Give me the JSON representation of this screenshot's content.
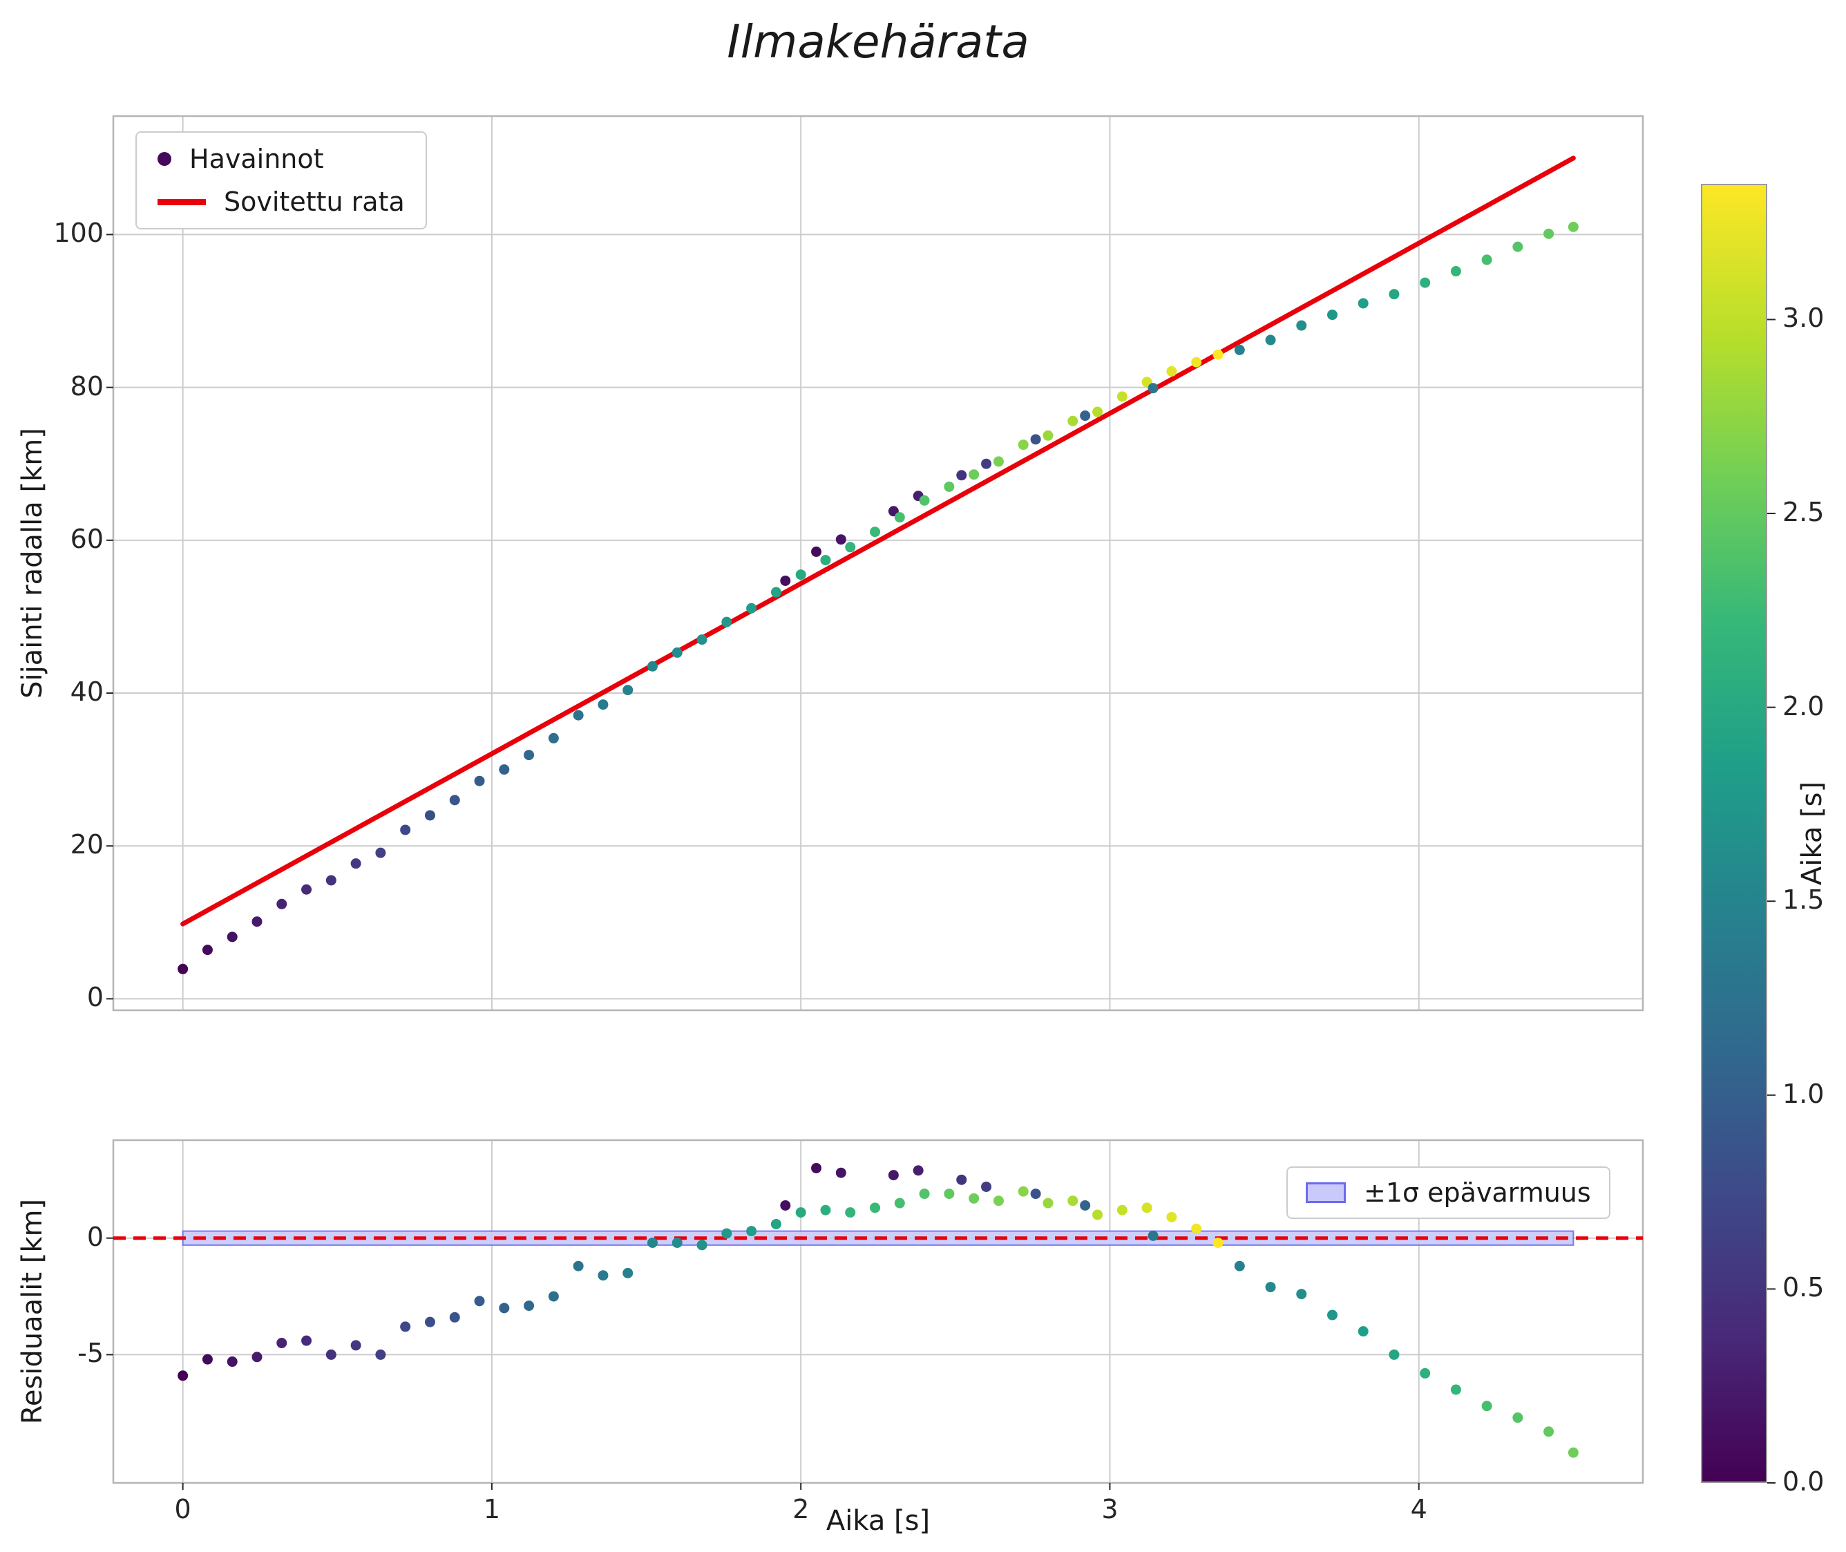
{
  "figure": {
    "title": "Ilmakehärata"
  },
  "colors": {
    "fit_line": "#e8000b",
    "band_fill": "#c9c9fa",
    "band_edge": "#6b6bf0",
    "grid": "#cccccc",
    "spine": "#b5b5b5",
    "tick_text": "#262626",
    "viridis": [
      [
        0.0,
        "#440154"
      ],
      [
        0.11,
        "#482878"
      ],
      [
        0.22,
        "#3e4989"
      ],
      [
        0.33,
        "#31688e"
      ],
      [
        0.44,
        "#26828e"
      ],
      [
        0.55,
        "#1f9e89"
      ],
      [
        0.66,
        "#35b779"
      ],
      [
        0.77,
        "#6ece58"
      ],
      [
        0.88,
        "#b5de2b"
      ],
      [
        1.0,
        "#fde725"
      ]
    ]
  },
  "chart_data": [
    {
      "type": "scatter",
      "title": "Ilmakehärata",
      "xlabel": "",
      "ylabel": "Sijainti radalla [km]",
      "xlim": [
        -0.225,
        4.725
      ],
      "ylim": [
        -1.5,
        115.5
      ],
      "xticks": [
        0,
        1,
        2,
        3,
        4
      ],
      "yticks": [
        0,
        20,
        40,
        60,
        80,
        100
      ],
      "grid": true,
      "legend": [
        "Havainnot",
        "Sovitettu rata"
      ],
      "legend_position": "upper left",
      "fit_line": {
        "x0": 0.0,
        "y0": 9.8,
        "x1": 4.5,
        "y1": 110.0
      },
      "colorbar": {
        "label": "Aika [s]",
        "ticks": [
          "0.0",
          "0.5",
          "1.0",
          "1.5",
          "2.0",
          "2.5",
          "3.0"
        ],
        "tick_values": [
          0.0,
          0.5,
          1.0,
          1.5,
          2.0,
          2.5,
          3.0
        ],
        "vmin": 0.0,
        "vmax": 3.35
      },
      "points": [
        {
          "x": 0.0,
          "y": 3.9,
          "r": -5.9,
          "c": 0.0
        },
        {
          "x": 0.08,
          "y": 6.4,
          "r": -5.2,
          "c": 0.08
        },
        {
          "x": 0.16,
          "y": 8.1,
          "r": -5.3,
          "c": 0.16
        },
        {
          "x": 0.24,
          "y": 10.1,
          "r": -5.1,
          "c": 0.24
        },
        {
          "x": 0.32,
          "y": 12.4,
          "r": -4.5,
          "c": 0.32
        },
        {
          "x": 0.4,
          "y": 14.3,
          "r": -4.4,
          "c": 0.4
        },
        {
          "x": 0.48,
          "y": 15.5,
          "r": -5.0,
          "c": 0.48
        },
        {
          "x": 0.56,
          "y": 17.7,
          "r": -4.6,
          "c": 0.56
        },
        {
          "x": 0.64,
          "y": 19.1,
          "r": -5.0,
          "c": 0.64
        },
        {
          "x": 0.72,
          "y": 22.1,
          "r": -3.8,
          "c": 0.72
        },
        {
          "x": 0.8,
          "y": 24.0,
          "r": -3.6,
          "c": 0.8
        },
        {
          "x": 0.88,
          "y": 26.0,
          "r": -3.4,
          "c": 0.88
        },
        {
          "x": 0.96,
          "y": 28.5,
          "r": -2.7,
          "c": 0.96
        },
        {
          "x": 1.04,
          "y": 30.0,
          "r": -3.0,
          "c": 1.04
        },
        {
          "x": 1.12,
          "y": 31.9,
          "r": -2.9,
          "c": 1.12
        },
        {
          "x": 1.2,
          "y": 34.1,
          "r": -2.5,
          "c": 1.2
        },
        {
          "x": 1.28,
          "y": 37.1,
          "r": -1.2,
          "c": 1.28
        },
        {
          "x": 1.36,
          "y": 38.5,
          "r": -1.6,
          "c": 1.36
        },
        {
          "x": 1.44,
          "y": 40.4,
          "r": -1.5,
          "c": 1.44
        },
        {
          "x": 1.52,
          "y": 43.5,
          "r": -0.2,
          "c": 1.52
        },
        {
          "x": 1.6,
          "y": 45.3,
          "r": -0.2,
          "c": 1.6
        },
        {
          "x": 1.68,
          "y": 47.0,
          "r": -0.3,
          "c": 1.68
        },
        {
          "x": 1.76,
          "y": 49.3,
          "r": 0.2,
          "c": 1.76
        },
        {
          "x": 1.84,
          "y": 51.1,
          "r": 0.3,
          "c": 1.84
        },
        {
          "x": 1.92,
          "y": 53.2,
          "r": 0.6,
          "c": 1.92
        },
        {
          "x": 1.95,
          "y": 54.7,
          "r": 1.4,
          "c": 0.12
        },
        {
          "x": 2.0,
          "y": 55.5,
          "r": 1.1,
          "c": 2.0
        },
        {
          "x": 2.05,
          "y": 58.5,
          "r": 3.0,
          "c": 0.1
        },
        {
          "x": 2.08,
          "y": 57.4,
          "r": 1.2,
          "c": 2.08
        },
        {
          "x": 2.13,
          "y": 60.1,
          "r": 2.8,
          "c": 0.18
        },
        {
          "x": 2.16,
          "y": 59.1,
          "r": 1.1,
          "c": 2.16
        },
        {
          "x": 2.24,
          "y": 61.1,
          "r": 1.3,
          "c": 2.24
        },
        {
          "x": 2.3,
          "y": 63.8,
          "r": 2.7,
          "c": 0.22
        },
        {
          "x": 2.32,
          "y": 63.0,
          "r": 1.5,
          "c": 2.32
        },
        {
          "x": 2.38,
          "y": 65.8,
          "r": 2.9,
          "c": 0.28
        },
        {
          "x": 2.4,
          "y": 65.2,
          "r": 1.9,
          "c": 2.4
        },
        {
          "x": 2.48,
          "y": 67.0,
          "r": 1.9,
          "c": 2.48
        },
        {
          "x": 2.52,
          "y": 68.5,
          "r": 2.5,
          "c": 0.5
        },
        {
          "x": 2.56,
          "y": 68.6,
          "r": 1.7,
          "c": 2.56
        },
        {
          "x": 2.6,
          "y": 70.0,
          "r": 2.2,
          "c": 0.6
        },
        {
          "x": 2.64,
          "y": 70.3,
          "r": 1.6,
          "c": 2.64
        },
        {
          "x": 2.72,
          "y": 72.5,
          "r": 2.0,
          "c": 2.72
        },
        {
          "x": 2.76,
          "y": 73.2,
          "r": 1.9,
          "c": 0.85
        },
        {
          "x": 2.8,
          "y": 73.7,
          "r": 1.5,
          "c": 2.8
        },
        {
          "x": 2.88,
          "y": 75.6,
          "r": 1.6,
          "c": 2.88
        },
        {
          "x": 2.92,
          "y": 76.3,
          "r": 1.4,
          "c": 1.05
        },
        {
          "x": 2.96,
          "y": 76.8,
          "r": 1.0,
          "c": 2.96
        },
        {
          "x": 3.04,
          "y": 78.8,
          "r": 1.2,
          "c": 3.04
        },
        {
          "x": 3.12,
          "y": 80.7,
          "r": 1.3,
          "c": 3.12
        },
        {
          "x": 3.14,
          "y": 79.9,
          "r": 0.1,
          "c": 1.3
        },
        {
          "x": 3.2,
          "y": 82.1,
          "r": 0.9,
          "c": 3.2
        },
        {
          "x": 3.28,
          "y": 83.3,
          "r": 0.4,
          "c": 3.28
        },
        {
          "x": 3.35,
          "y": 84.3,
          "r": -0.2,
          "c": 3.35
        },
        {
          "x": 3.42,
          "y": 84.9,
          "r": -1.2,
          "c": 1.45
        },
        {
          "x": 3.52,
          "y": 86.2,
          "r": -2.1,
          "c": 1.55
        },
        {
          "x": 3.62,
          "y": 88.1,
          "r": -2.4,
          "c": 1.65
        },
        {
          "x": 3.72,
          "y": 89.5,
          "r": -3.3,
          "c": 1.75
        },
        {
          "x": 3.82,
          "y": 91.0,
          "r": -4.0,
          "c": 1.85
        },
        {
          "x": 3.92,
          "y": 92.2,
          "r": -5.0,
          "c": 1.95
        },
        {
          "x": 4.02,
          "y": 93.7,
          "r": -5.8,
          "c": 2.1
        },
        {
          "x": 4.12,
          "y": 95.2,
          "r": -6.5,
          "c": 2.2
        },
        {
          "x": 4.22,
          "y": 96.7,
          "r": -7.2,
          "c": 2.32
        },
        {
          "x": 4.32,
          "y": 98.4,
          "r": -7.7,
          "c": 2.42
        },
        {
          "x": 4.42,
          "y": 100.1,
          "r": -8.3,
          "c": 2.5
        },
        {
          "x": 4.5,
          "y": 101.0,
          "r": -9.2,
          "c": 2.58
        }
      ]
    },
    {
      "type": "scatter",
      "title": "",
      "xlabel": "Aika [s]",
      "ylabel": "Residuaalit [km]",
      "xlim": [
        -0.225,
        4.725
      ],
      "ylim": [
        -10.5,
        4.2
      ],
      "xticks": [
        0,
        1,
        2,
        3,
        4
      ],
      "yticks": [
        0,
        -5
      ],
      "grid": true,
      "zero_line_y": 0,
      "band": {
        "center": 0,
        "half_width": 0.3,
        "x_start": 0.0,
        "x_end": 4.5,
        "label": "±1σ epävarmuus"
      },
      "points_note": "same points as chart_data[0]; residual value is the r field"
    }
  ]
}
